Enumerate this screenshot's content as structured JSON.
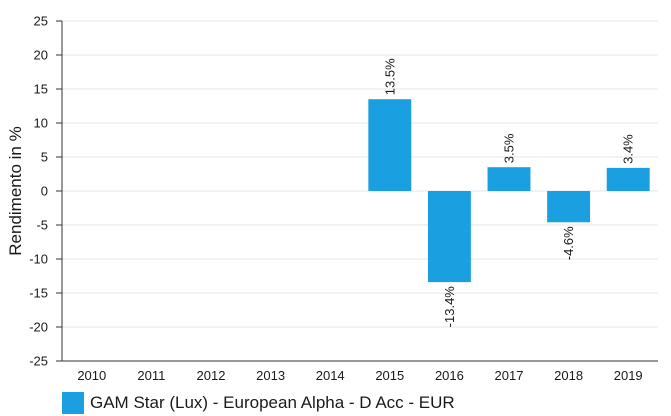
{
  "chart_data": {
    "type": "bar",
    "categories": [
      "2010",
      "2011",
      "2012",
      "2013",
      "2014",
      "2015",
      "2016",
      "2017",
      "2018",
      "2019"
    ],
    "series": [
      {
        "name": "GAM Star (Lux) - European Alpha - D Acc - EUR",
        "values": [
          null,
          null,
          null,
          null,
          null,
          13.5,
          -13.4,
          3.5,
          -4.6,
          3.4
        ],
        "data_labels": [
          "",
          "",
          "",
          "",
          "",
          "13.5%",
          "-13.4%",
          "3.5%",
          "-4.6%",
          "3.4%"
        ],
        "color": "#1a9fe0"
      }
    ],
    "title": "",
    "xlabel": "",
    "ylabel": "Rendimento in %",
    "ylim": [
      -25,
      25
    ],
    "yticks": [
      25,
      20,
      15,
      10,
      5,
      0,
      -5,
      -10,
      -15,
      -20,
      -25
    ],
    "grid": "horizontal",
    "legend": "bottom-left"
  },
  "colors": {
    "bar": "#1a9fe0",
    "axis": "#333333",
    "grid": "#e6e6e6",
    "text": "#1a1a1a"
  }
}
